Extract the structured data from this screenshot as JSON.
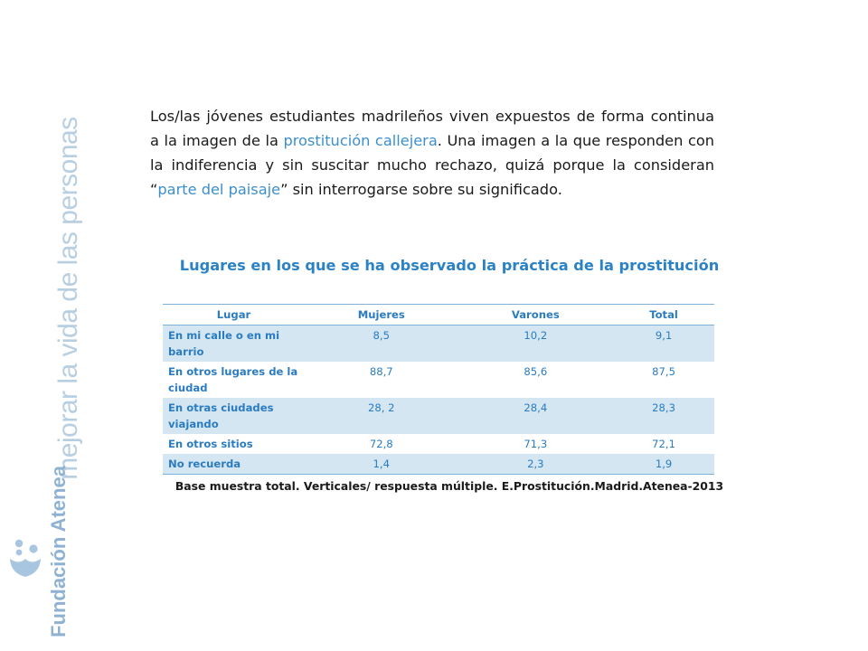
{
  "sidebar": {
    "tagline": "mejorar la vida de las personas",
    "brand": "Fundación Atenea",
    "accent_color": "#8fb2d3",
    "logo_icon": "foundation-logo-icon"
  },
  "intro": {
    "part1": "Los/las jóvenes estudiantes madrileños viven expuestos de forma continua a la imagen de la ",
    "highlight1": "prostitución callejera",
    "part2": ". Una imagen a la que responden con la indiferencia y sin suscitar mucho rechazo, quizá porque la consideran “",
    "highlight2": "parte del paisaje",
    "part3": "” sin interrogarse sobre su significado."
  },
  "table": {
    "title": "Lugares en los que se ha observado la práctica de la prostitución",
    "headers": [
      "Lugar",
      "Mujeres",
      "Varones",
      "Total"
    ],
    "rows": [
      [
        "En mi calle o en mi barrio",
        "8,5",
        "10,2",
        "9,1"
      ],
      [
        "En otros lugares de la ciudad",
        "88,7",
        "85,6",
        "87,5"
      ],
      [
        "En otras ciudades viajando",
        "28, 2",
        "28,4",
        "28,3"
      ],
      [
        "En otros sitios",
        "72,8",
        "71,3",
        "72,1"
      ],
      [
        "No recuerda",
        "1,4",
        "2,3",
        "1,9"
      ]
    ],
    "footnote": "Base muestra total. Verticales/ respuesta múltiple. E.Prostitución.Madrid.Atenea-2013",
    "header_color": "#2b7cc0",
    "shade_color": "#d4e6f2"
  }
}
